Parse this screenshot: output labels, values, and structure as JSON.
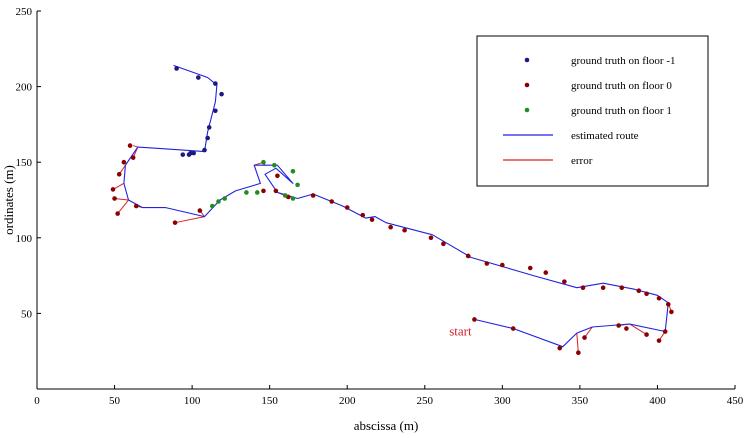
{
  "chart_data": {
    "type": "line",
    "xlabel": "abscissa (m)",
    "ylabel": "ordinates (m)",
    "xlim": [
      0,
      450
    ],
    "ylim": [
      0,
      250
    ],
    "xticks": [
      0,
      50,
      100,
      150,
      200,
      250,
      300,
      350,
      400,
      450
    ],
    "yticks": [
      50,
      100,
      150,
      200,
      250
    ],
    "grid": false,
    "legend_position": "top-right",
    "annotation": {
      "text": "start",
      "x": 282,
      "y": 46,
      "color": "#cc2222"
    },
    "colors": {
      "floor_minus1": "#1a1a80",
      "floor_0": "#8b0000",
      "floor_1": "#228b22",
      "route": "#2222dd",
      "error": "#dd2222"
    },
    "legend": [
      {
        "label": "ground truth on floor -1",
        "kind": "dot",
        "color_key": "floor_minus1"
      },
      {
        "label": "ground truth on floor 0",
        "kind": "dot",
        "color_key": "floor_0"
      },
      {
        "label": "ground truth on floor 1",
        "kind": "dot",
        "color_key": "floor_1"
      },
      {
        "label": "estimated route",
        "kind": "line",
        "color_key": "route"
      },
      {
        "label": "error",
        "kind": "line",
        "color_key": "error"
      }
    ],
    "estimated_route": [
      [
        282,
        46
      ],
      [
        307,
        40
      ],
      [
        339,
        28
      ],
      [
        348,
        37
      ],
      [
        358,
        41
      ],
      [
        382,
        43
      ],
      [
        405,
        38
      ],
      [
        407,
        57
      ],
      [
        400,
        62
      ],
      [
        385,
        66
      ],
      [
        365,
        70
      ],
      [
        348,
        67
      ],
      [
        320,
        75
      ],
      [
        280,
        87
      ],
      [
        255,
        102
      ],
      [
        225,
        110
      ],
      [
        218,
        114
      ],
      [
        212,
        113
      ],
      [
        197,
        121
      ],
      [
        178,
        129
      ],
      [
        168,
        126
      ],
      [
        155,
        130
      ],
      [
        147,
        142
      ],
      [
        154,
        146
      ],
      [
        165,
        136
      ],
      [
        155,
        148
      ],
      [
        147,
        148
      ],
      [
        140,
        148
      ],
      [
        144,
        136
      ],
      [
        128,
        131
      ],
      [
        118,
        125
      ],
      [
        108,
        114
      ],
      [
        83,
        120
      ],
      [
        68,
        120
      ],
      [
        59,
        125
      ],
      [
        56,
        136
      ],
      [
        57,
        148
      ],
      [
        65,
        160
      ],
      [
        80,
        159
      ],
      [
        108,
        157
      ],
      [
        110,
        170
      ],
      [
        115,
        190
      ],
      [
        116,
        201
      ],
      [
        110,
        206
      ],
      [
        88,
        214
      ]
    ],
    "series": [
      {
        "name": "ground truth on floor -1",
        "color_key": "floor_minus1",
        "points": [
          [
            90,
            212
          ],
          [
            104,
            206
          ],
          [
            115,
            202
          ],
          [
            119,
            195
          ],
          [
            115,
            184
          ],
          [
            111,
            173
          ],
          [
            110,
            166
          ],
          [
            108,
            158
          ],
          [
            101,
            156
          ],
          [
            99,
            156
          ],
          [
            98,
            155
          ],
          [
            94,
            155
          ]
        ]
      },
      {
        "name": "ground truth on floor 0",
        "color_key": "floor_0",
        "points": [
          [
            282,
            46
          ],
          [
            307,
            40
          ],
          [
            337,
            27
          ],
          [
            349,
            24
          ],
          [
            353,
            34
          ],
          [
            375,
            42
          ],
          [
            380,
            40
          ],
          [
            393,
            36
          ],
          [
            401,
            32
          ],
          [
            405,
            38
          ],
          [
            409,
            51
          ],
          [
            407,
            56
          ],
          [
            401,
            60
          ],
          [
            393,
            63
          ],
          [
            388,
            65
          ],
          [
            377,
            67
          ],
          [
            365,
            67
          ],
          [
            352,
            67
          ],
          [
            340,
            71
          ],
          [
            328,
            77
          ],
          [
            318,
            80
          ],
          [
            300,
            82
          ],
          [
            290,
            83
          ],
          [
            278,
            88
          ],
          [
            262,
            96
          ],
          [
            254,
            100
          ],
          [
            237,
            105
          ],
          [
            228,
            107
          ],
          [
            216,
            112
          ],
          [
            210,
            115
          ],
          [
            200,
            120
          ],
          [
            190,
            124
          ],
          [
            178,
            128
          ],
          [
            162,
            127
          ],
          [
            154,
            131
          ],
          [
            155,
            141
          ],
          [
            146,
            131
          ],
          [
            105,
            118
          ],
          [
            89,
            110
          ],
          [
            62,
            153
          ],
          [
            60,
            161
          ],
          [
            56,
            150
          ],
          [
            53,
            142
          ],
          [
            49,
            132
          ],
          [
            50,
            126
          ],
          [
            64,
            121
          ],
          [
            52,
            116
          ]
        ]
      },
      {
        "name": "ground truth on floor 1",
        "color_key": "floor_1",
        "points": [
          [
            146,
            150
          ],
          [
            153,
            148
          ],
          [
            165,
            144
          ],
          [
            168,
            135
          ],
          [
            165,
            126
          ],
          [
            160,
            128
          ],
          [
            142,
            130
          ],
          [
            135,
            130
          ],
          [
            121,
            126
          ],
          [
            117,
            124
          ],
          [
            113,
            121
          ]
        ]
      }
    ],
    "errors": [
      [
        [
          56,
          136
        ],
        [
          49,
          132
        ]
      ],
      [
        [
          59,
          125
        ],
        [
          50,
          126
        ]
      ],
      [
        [
          68,
          120
        ],
        [
          64,
          121
        ]
      ],
      [
        [
          59,
          125
        ],
        [
          52,
          116
        ]
      ],
      [
        [
          108,
          114
        ],
        [
          89,
          110
        ]
      ],
      [
        [
          108,
          114
        ],
        [
          105,
          118
        ]
      ],
      [
        [
          57,
          148
        ],
        [
          53,
          142
        ]
      ],
      [
        [
          65,
          160
        ],
        [
          62,
          161
        ]
      ],
      [
        [
          65,
          160
        ],
        [
          62,
          153
        ]
      ],
      [
        [
          339,
          28
        ],
        [
          337,
          27
        ]
      ],
      [
        [
          348,
          37
        ],
        [
          349,
          24
        ]
      ],
      [
        [
          358,
          41
        ],
        [
          353,
          34
        ]
      ],
      [
        [
          382,
          43
        ],
        [
          375,
          42
        ]
      ],
      [
        [
          382,
          43
        ],
        [
          393,
          36
        ]
      ],
      [
        [
          405,
          38
        ],
        [
          401,
          32
        ]
      ],
      [
        [
          407,
          57
        ],
        [
          409,
          51
        ]
      ],
      [
        [
          178,
          129
        ],
        [
          178,
          128
        ]
      ],
      [
        [
          155,
          130
        ],
        [
          162,
          127
        ]
      ],
      [
        [
          147,
          148
        ],
        [
          146,
          150
        ]
      ],
      [
        [
          140,
          148
        ],
        [
          146,
          150
        ]
      ]
    ]
  }
}
